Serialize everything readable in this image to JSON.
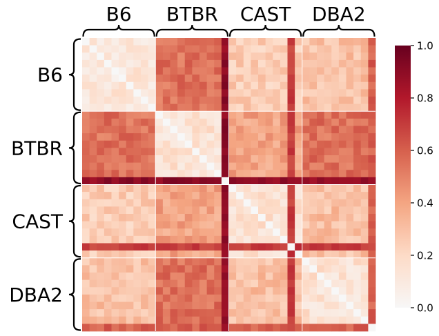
{
  "chart_data": {
    "type": "heatmap",
    "groups": [
      "B6",
      "BTBR",
      "CAST",
      "DBA2"
    ],
    "items_per_group": 10,
    "value_range": [
      0.0,
      1.0
    ],
    "colormap": "RdBu_r (white to dark red)",
    "colorbar": {
      "ticks": [
        0.0,
        0.2,
        0.4,
        0.6,
        0.8,
        1.0
      ],
      "tick_labels": [
        "0.0",
        "0.2",
        "0.4",
        "0.6",
        "0.8",
        "1.0"
      ],
      "placement": "right"
    },
    "block_mean_values": [
      [
        0.12,
        0.55,
        0.25,
        0.3
      ],
      [
        0.55,
        0.15,
        0.4,
        0.55
      ],
      [
        0.25,
        0.4,
        0.15,
        0.3
      ],
      [
        0.3,
        0.55,
        0.3,
        0.15
      ]
    ],
    "highlights": [
      {
        "group": "BTBR",
        "item": 9,
        "value": 0.9
      },
      {
        "group": "CAST",
        "item": 8,
        "value": 0.7
      },
      {
        "group": "DBA2",
        "item": 9,
        "value": 0.6
      }
    ],
    "diagonal_value": 0.0,
    "grid": false,
    "brackets": {
      "top": true,
      "left": true
    }
  }
}
